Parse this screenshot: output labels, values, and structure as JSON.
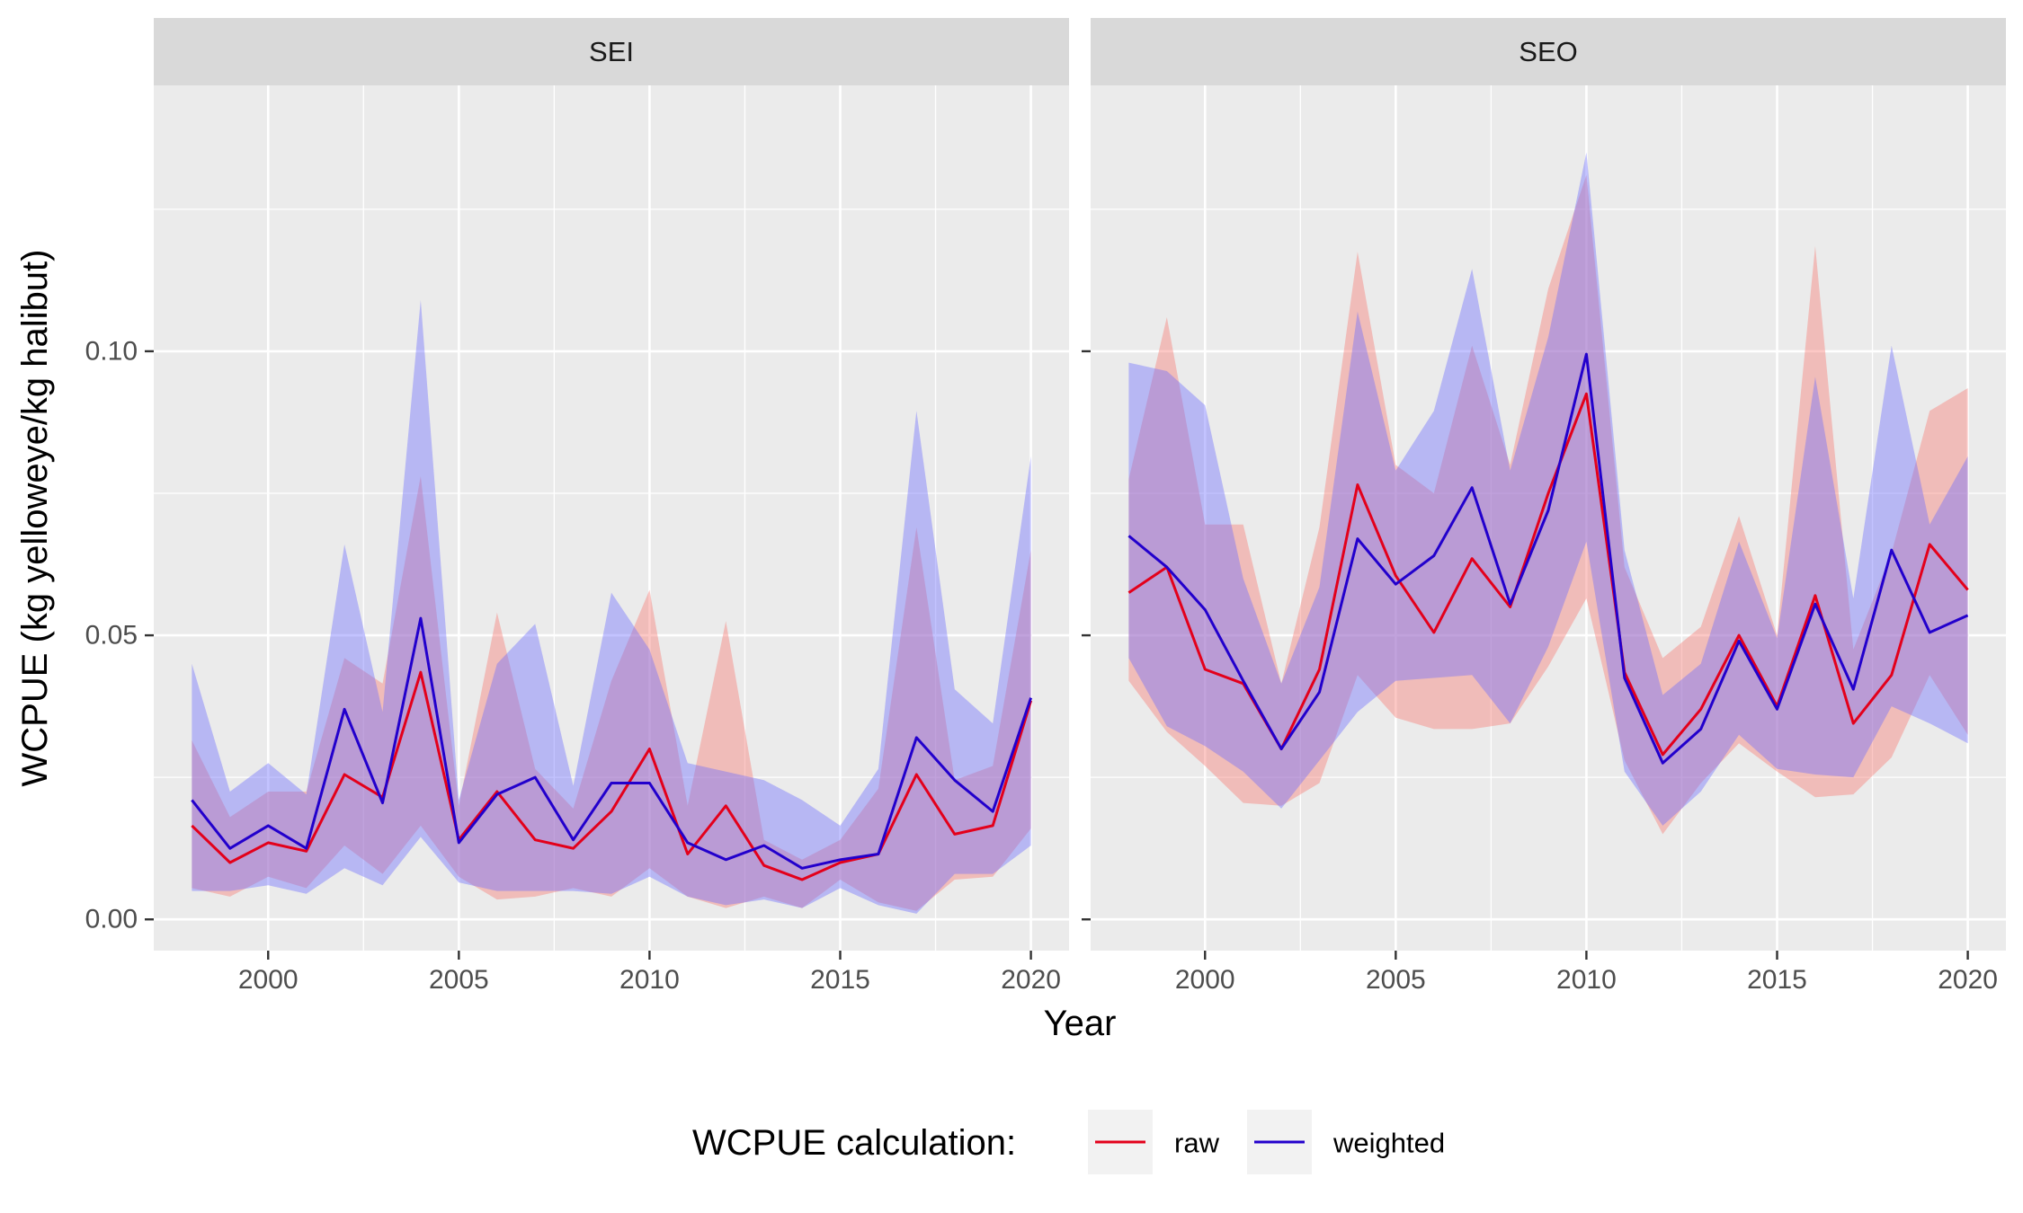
{
  "chart_data": {
    "type": "line",
    "xlabel": "Year",
    "ylabel": "WCPUE (kg yelloweye/kg halibut)",
    "xlim": [
      1997.0,
      2021.0
    ],
    "ylim": [
      -0.0055,
      0.1468
    ],
    "x_ticks": [
      2000,
      2005,
      2010,
      2015,
      2020
    ],
    "x_tick_labels": [
      "2000",
      "2005",
      "2010",
      "2015",
      "2020"
    ],
    "y_ticks": [
      0.0,
      0.05,
      0.1
    ],
    "y_tick_labels": [
      "0.00",
      "0.05",
      "0.10"
    ],
    "grid": true,
    "legend": {
      "title": "WCPUE calculation:",
      "position": "bottom",
      "entries": [
        {
          "label": "raw",
          "color": "#e3001b"
        },
        {
          "label": "weighted",
          "color": "#2200cc"
        }
      ]
    },
    "colors": {
      "raw_line": "#e3001b",
      "weighted_line": "#2200cc",
      "raw_band": "#f8766d",
      "weighted_band": "#6a6aff",
      "panel_bg": "#ebebeb",
      "strip_bg": "#d9d9d9"
    },
    "x": [
      1998,
      1999,
      2000,
      2001,
      2002,
      2003,
      2004,
      2005,
      2006,
      2007,
      2008,
      2009,
      2010,
      2011,
      2012,
      2013,
      2014,
      2015,
      2016,
      2017,
      2018,
      2019,
      2020
    ],
    "panels": [
      {
        "label": "SEI",
        "series": [
          {
            "name": "raw",
            "values": [
              0.0165,
              0.01,
              0.0135,
              0.012,
              0.0255,
              0.0215,
              0.0435,
              0.014,
              0.0225,
              0.014,
              0.0125,
              0.019,
              0.03,
              0.0115,
              0.02,
              0.0095,
              0.007,
              0.01,
              0.0115,
              0.0255,
              0.015,
              0.0165,
              0.0385
            ],
            "lower": [
              0.0055,
              0.004,
              0.0075,
              0.0055,
              0.013,
              0.008,
              0.0165,
              0.0075,
              0.0035,
              0.004,
              0.0055,
              0.004,
              0.009,
              0.004,
              0.002,
              0.004,
              0.002,
              0.007,
              0.003,
              0.0015,
              0.007,
              0.0075,
              0.016
            ],
            "upper": [
              0.0315,
              0.018,
              0.0225,
              0.0225,
              0.046,
              0.0415,
              0.078,
              0.02,
              0.054,
              0.0265,
              0.0195,
              0.042,
              0.058,
              0.02,
              0.0525,
              0.014,
              0.0105,
              0.014,
              0.023,
              0.069,
              0.0245,
              0.027,
              0.065
            ]
          },
          {
            "name": "weighted",
            "values": [
              0.021,
              0.0125,
              0.0165,
              0.0125,
              0.037,
              0.0205,
              0.053,
              0.0135,
              0.022,
              0.025,
              0.014,
              0.024,
              0.024,
              0.0135,
              0.0105,
              0.013,
              0.009,
              0.0105,
              0.0115,
              0.032,
              0.0245,
              0.019,
              0.039
            ],
            "lower": [
              0.005,
              0.005,
              0.006,
              0.0045,
              0.009,
              0.006,
              0.0145,
              0.0065,
              0.005,
              0.005,
              0.005,
              0.0045,
              0.0075,
              0.004,
              0.0025,
              0.0035,
              0.002,
              0.0055,
              0.0025,
              0.001,
              0.008,
              0.008,
              0.013
            ],
            "upper": [
              0.045,
              0.0225,
              0.0275,
              0.022,
              0.066,
              0.0365,
              0.109,
              0.021,
              0.045,
              0.052,
              0.0235,
              0.0575,
              0.0475,
              0.0275,
              0.026,
              0.0245,
              0.021,
              0.0165,
              0.0265,
              0.0895,
              0.0405,
              0.0345,
              0.0815
            ]
          }
        ]
      },
      {
        "label": "SEO",
        "series": [
          {
            "name": "raw",
            "values": [
              0.0575,
              0.062,
              0.044,
              0.0415,
              0.03,
              0.044,
              0.0765,
              0.0605,
              0.0505,
              0.0635,
              0.055,
              0.075,
              0.0925,
              0.0435,
              0.029,
              0.037,
              0.05,
              0.0375,
              0.057,
              0.0345,
              0.043,
              0.066,
              0.058
            ],
            "lower": [
              0.042,
              0.033,
              0.027,
              0.0205,
              0.02,
              0.024,
              0.043,
              0.0355,
              0.0335,
              0.0335,
              0.0345,
              0.0445,
              0.0565,
              0.028,
              0.015,
              0.024,
              0.031,
              0.026,
              0.0215,
              0.022,
              0.0285,
              0.043,
              0.0325
            ],
            "upper": [
              0.0775,
              0.106,
              0.0695,
              0.0695,
              0.0415,
              0.069,
              0.1175,
              0.08,
              0.075,
              0.101,
              0.08,
              0.111,
              0.131,
              0.062,
              0.046,
              0.0515,
              0.071,
              0.05,
              0.1185,
              0.0475,
              0.0645,
              0.0895,
              0.0935
            ]
          },
          {
            "name": "weighted",
            "values": [
              0.0675,
              0.062,
              0.0545,
              0.042,
              0.03,
              0.04,
              0.067,
              0.059,
              0.064,
              0.076,
              0.0555,
              0.072,
              0.0995,
              0.0425,
              0.0275,
              0.0335,
              0.049,
              0.037,
              0.0555,
              0.0405,
              0.065,
              0.0505,
              0.0535
            ],
            "lower": [
              0.046,
              0.034,
              0.0305,
              0.026,
              0.0195,
              0.028,
              0.0365,
              0.042,
              0.0425,
              0.043,
              0.0345,
              0.048,
              0.0665,
              0.026,
              0.0165,
              0.0225,
              0.0325,
              0.0265,
              0.0255,
              0.025,
              0.0375,
              0.0345,
              0.031
            ],
            "upper": [
              0.098,
              0.0965,
              0.0905,
              0.06,
              0.0415,
              0.0585,
              0.107,
              0.079,
              0.0895,
              0.1145,
              0.079,
              0.1025,
              0.135,
              0.065,
              0.0395,
              0.045,
              0.0665,
              0.0495,
              0.0955,
              0.0565,
              0.101,
              0.0695,
              0.0815
            ]
          }
        ]
      }
    ]
  }
}
